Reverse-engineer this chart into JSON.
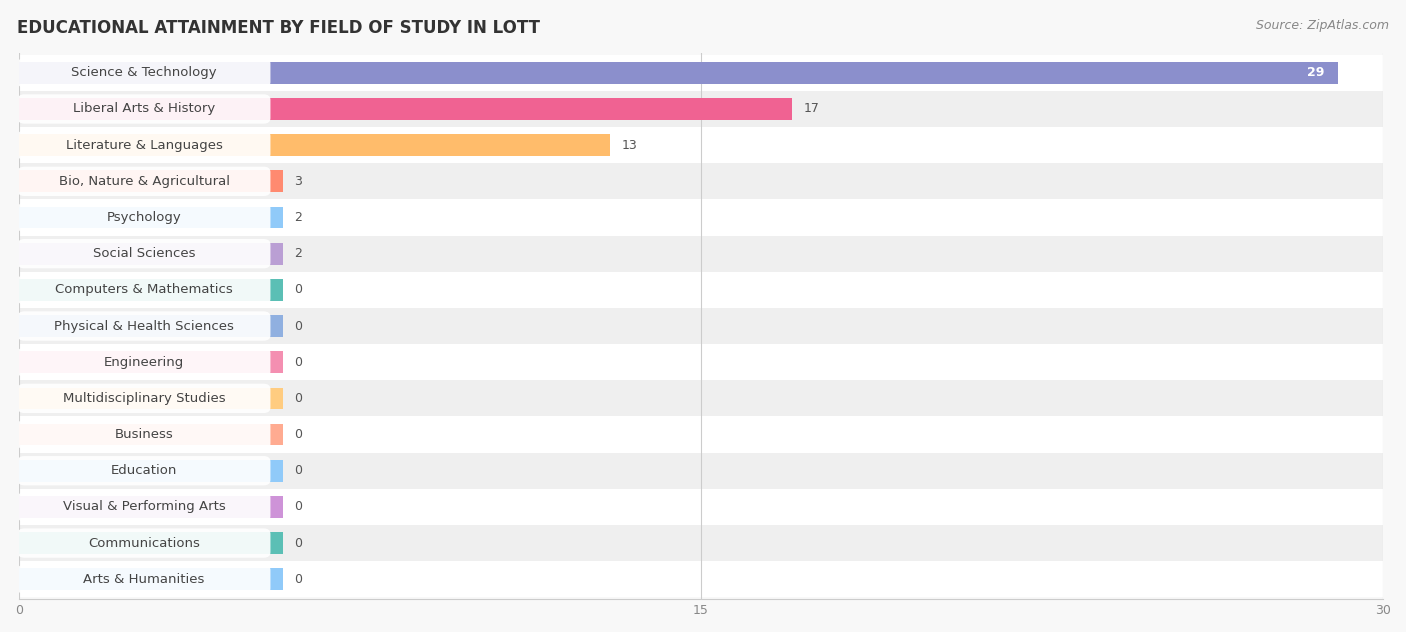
{
  "title": "EDUCATIONAL ATTAINMENT BY FIELD OF STUDY IN LOTT",
  "source": "Source: ZipAtlas.com",
  "categories": [
    "Science & Technology",
    "Liberal Arts & History",
    "Literature & Languages",
    "Bio, Nature & Agricultural",
    "Psychology",
    "Social Sciences",
    "Computers & Mathematics",
    "Physical & Health Sciences",
    "Engineering",
    "Multidisciplinary Studies",
    "Business",
    "Education",
    "Visual & Performing Arts",
    "Communications",
    "Arts & Humanities"
  ],
  "values": [
    29,
    17,
    13,
    3,
    2,
    2,
    0,
    0,
    0,
    0,
    0,
    0,
    0,
    0,
    0
  ],
  "bar_colors": [
    "#8B8FCC",
    "#F06292",
    "#FFBC6B",
    "#FF8A70",
    "#90CAF9",
    "#BA9FD4",
    "#5BBFB5",
    "#90B0E0",
    "#F48FB1",
    "#FFCC80",
    "#FFAB91",
    "#90CAF9",
    "#CE93D8",
    "#5BBFB5",
    "#90CAF9"
  ],
  "xlim": [
    0,
    30
  ],
  "xticks": [
    0,
    15,
    30
  ],
  "background_color": "#f8f8f8",
  "row_bg_even": "#ffffff",
  "row_bg_odd": "#efefef",
  "title_fontsize": 12,
  "source_fontsize": 9,
  "value_fontsize": 9,
  "label_fontsize": 9.5
}
